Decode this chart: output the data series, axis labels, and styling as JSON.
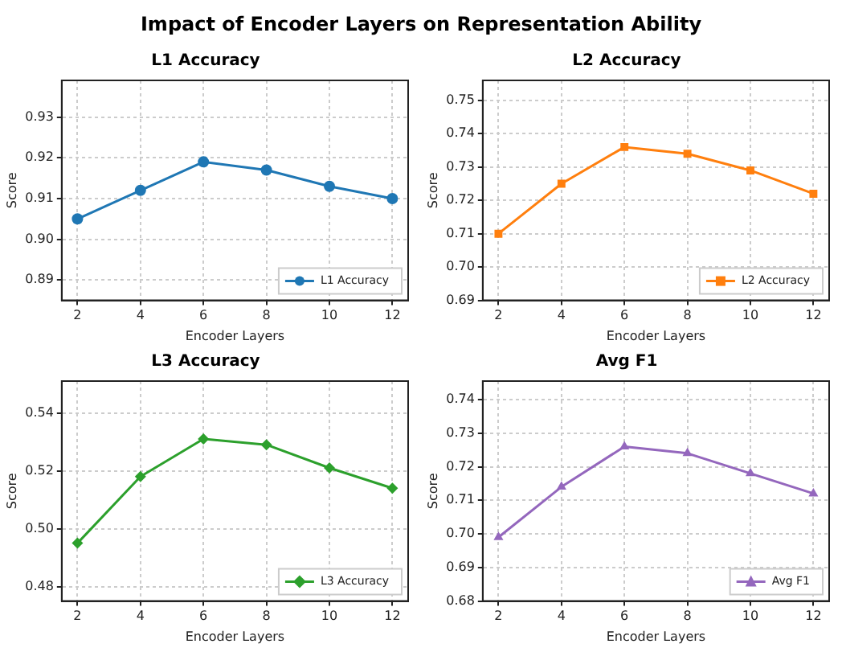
{
  "chart_data": [
    {
      "type": "line",
      "title": "L1 Accuracy",
      "annotations": [
        "Impact of Encoder Layers on Representation Ability"
      ],
      "xlabel": "Encoder Layers",
      "ylabel": "Score",
      "x": [
        2,
        4,
        6,
        8,
        10,
        12
      ],
      "xlim": [
        1.5,
        12.5
      ],
      "xticks": [
        2,
        4,
        6,
        8,
        10,
        12
      ],
      "ylim": [
        0.885,
        0.939
      ],
      "yticks": [
        0.89,
        {
          "value": 0.9,
          "label": "0.90"
        },
        0.91,
        0.92,
        0.93
      ],
      "series": [
        {
          "name": "L1 Accuracy",
          "color": "#1f77b4",
          "marker": "circle",
          "values": [
            0.905,
            0.912,
            0.919,
            0.917,
            0.913,
            0.91
          ]
        }
      ],
      "grid": true,
      "legend": "bottom right"
    },
    {
      "type": "line",
      "title": "L2 Accuracy",
      "xlabel": "Encoder Layers",
      "ylabel": "Score",
      "x": [
        2,
        4,
        6,
        8,
        10,
        12
      ],
      "xlim": [
        1.5,
        12.5
      ],
      "xticks": [
        2,
        4,
        6,
        8,
        10,
        12
      ],
      "ylim": [
        0.69,
        0.756
      ],
      "yticks": [
        0.69,
        {
          "value": 0.7,
          "label": "0.70"
        },
        0.71,
        0.72,
        0.73,
        0.74,
        0.75
      ],
      "series": [
        {
          "name": "L2 Accuracy",
          "color": "#ff7f0e",
          "marker": "square",
          "values": [
            0.71,
            0.725,
            0.736,
            0.734,
            0.729,
            0.722
          ]
        }
      ],
      "grid": true,
      "legend": "bottom right"
    },
    {
      "type": "line",
      "title": "L3 Accuracy",
      "xlabel": "Encoder Layers",
      "ylabel": "Score",
      "x": [
        2,
        4,
        6,
        8,
        10,
        12
      ],
      "xlim": [
        1.5,
        12.5
      ],
      "xticks": [
        2,
        4,
        6,
        8,
        10,
        12
      ],
      "ylim": [
        0.475,
        0.551
      ],
      "yticks": [
        0.48,
        {
          "value": 0.5,
          "label": "0.50"
        },
        0.52,
        0.54
      ],
      "series": [
        {
          "name": "L3 Accuracy",
          "color": "#2ca02c",
          "marker": "diamond",
          "values": [
            0.495,
            0.518,
            0.531,
            0.529,
            0.521,
            0.514
          ]
        }
      ],
      "grid": true,
      "legend": "bottom right"
    },
    {
      "type": "line",
      "title": "Avg F1",
      "xlabel": "Encoder Layers",
      "ylabel": "Score",
      "x": [
        2,
        4,
        6,
        8,
        10,
        12
      ],
      "xlim": [
        1.5,
        12.5
      ],
      "xticks": [
        2,
        4,
        6,
        8,
        10,
        12
      ],
      "ylim": [
        0.68,
        0.7455
      ],
      "yticks": [
        0.68,
        0.69,
        {
          "value": 0.7,
          "label": "0.70"
        },
        0.71,
        0.72,
        0.73,
        0.74
      ],
      "series": [
        {
          "name": "Avg F1",
          "color": "#9467bd",
          "marker": "triangle",
          "values": [
            0.699,
            0.714,
            0.726,
            0.724,
            0.718,
            0.712
          ]
        }
      ],
      "grid": true,
      "legend": "bottom right"
    }
  ]
}
